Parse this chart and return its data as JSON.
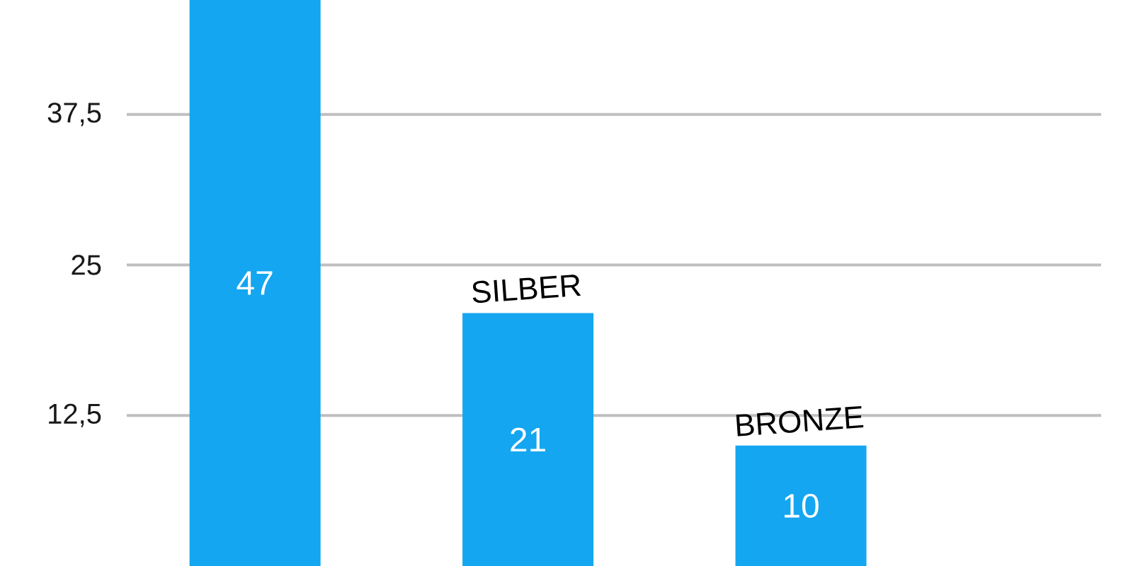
{
  "chart_data": {
    "type": "bar",
    "categories": [
      null,
      "SILBER",
      "BRONZE"
    ],
    "values": [
      47,
      21,
      10
    ],
    "color": "#14a6f0",
    "ylim": [
      0,
      47
    ],
    "yticks": [
      {
        "value": 12.5,
        "label": "12,5"
      },
      25,
      {
        "value": 37.5,
        "label": "37,5"
      }
    ],
    "grid": "y",
    "data_labels": true
  }
}
